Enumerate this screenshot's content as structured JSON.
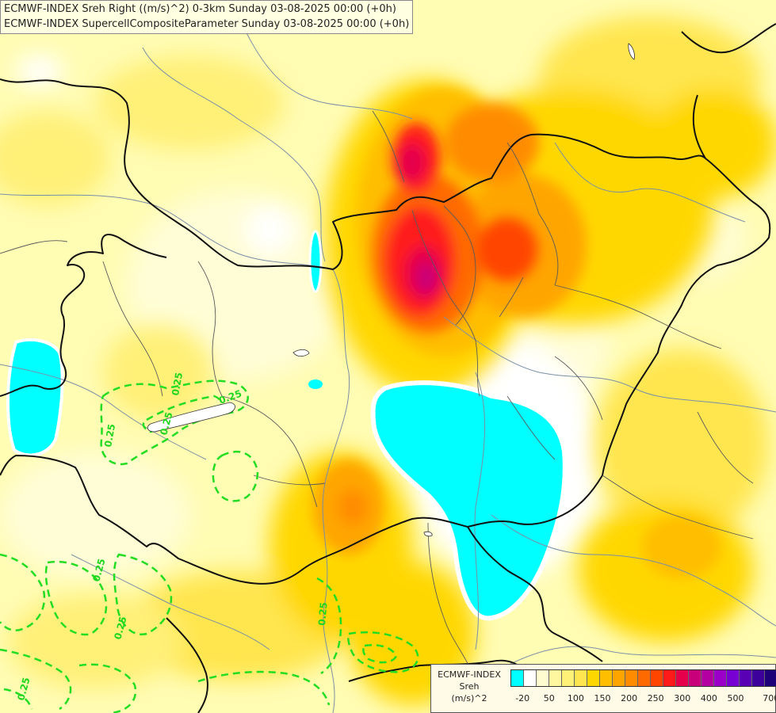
{
  "titles": {
    "line1": "ECMWF-INDEX Sreh Right ((m/s)^2) 0-3km Sunday 03-08-2025 00:00 (+0h)",
    "line2": "ECMWF-INDEX SupercellCompositeParameter Sunday 03-08-2025 00:00 (+0h)"
  },
  "legend": {
    "line1": "ECMWF-INDEX",
    "line2": "Sreh",
    "line3": "(m/s)^2",
    "colors": [
      "#00ffff",
      "#ffffff",
      "#fffcd0",
      "#fff7a0",
      "#fff078",
      "#ffe650",
      "#ffd700",
      "#ffbe00",
      "#ffa500",
      "#ff8c00",
      "#ff6a00",
      "#ff4500",
      "#ff1a1a",
      "#e6004c",
      "#c8007a",
      "#b400a0",
      "#9b00c8",
      "#7800d2",
      "#5a00b4",
      "#3c009b",
      "#1e0078"
    ],
    "ticks": [
      "-20",
      "50",
      "100",
      "150",
      "200",
      "250",
      "300",
      "400",
      "500",
      "700"
    ]
  },
  "contour_labels": [
    "0.25",
    "0.25",
    "0.25",
    "0.25",
    "0.25",
    "0.25",
    "0.25",
    "0.25"
  ],
  "colors": {
    "bg_yellow": "#fffcb4",
    "hot_center": "#c8007a",
    "cyan_low": "#00ffff",
    "contour_green": "#22dd22"
  }
}
